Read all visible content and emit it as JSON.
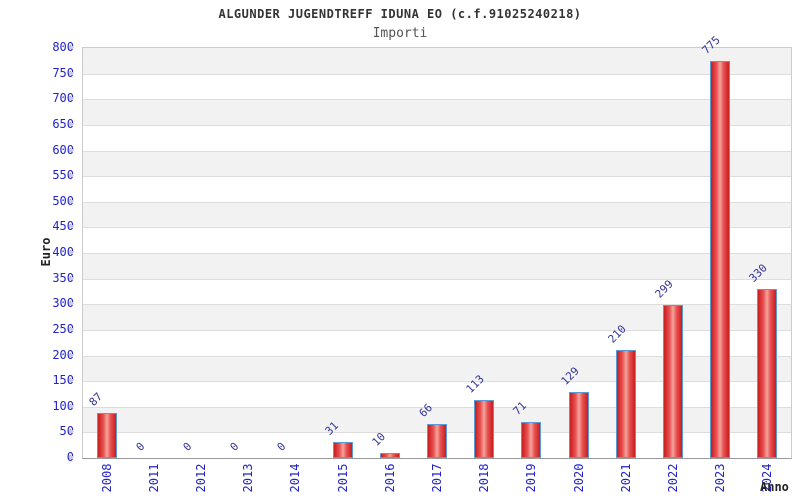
{
  "header": {
    "title": "ALGUNDER JUGENDTREFF IDUNA EO (c.f.91025240218)",
    "subtitle": "Importi"
  },
  "chart_data": {
    "type": "bar",
    "title": "ALGUNDER JUGENDTREFF IDUNA EO (c.f.91025240218)",
    "subtitle": "Importi",
    "categories": [
      "2008",
      "2011",
      "2012",
      "2013",
      "2014",
      "2015",
      "2016",
      "2017",
      "2018",
      "2019",
      "2020",
      "2021",
      "2022",
      "2023",
      "2024"
    ],
    "values": [
      87,
      0,
      0,
      0,
      0,
      31,
      10,
      66,
      113,
      71,
      129,
      210,
      299,
      775,
      330
    ],
    "xlabel": "Anno",
    "ylabel": "Euro",
    "ylim": [
      0,
      800
    ],
    "ytick_step": 50,
    "yticks": [
      0,
      50,
      100,
      150,
      200,
      250,
      300,
      350,
      400,
      450,
      500,
      550,
      600,
      650,
      700,
      750,
      800
    ],
    "grid": "horizontal-bands-alternating",
    "legend": "none",
    "colors": {
      "bar_edge": "#c81e1e",
      "bar_mid": "#e85050",
      "bar_center": "#f2a49c",
      "bar_border": "#5b9bd5",
      "axis_tick_text": "#2222cc",
      "value_label_text": "#333399",
      "band_gray": "#f2f2f2",
      "band_white": "#ffffff",
      "gridline": "#dddddd",
      "axis_line": "#999999",
      "title_text": "#333333",
      "subtitle_text": "#555555"
    }
  }
}
